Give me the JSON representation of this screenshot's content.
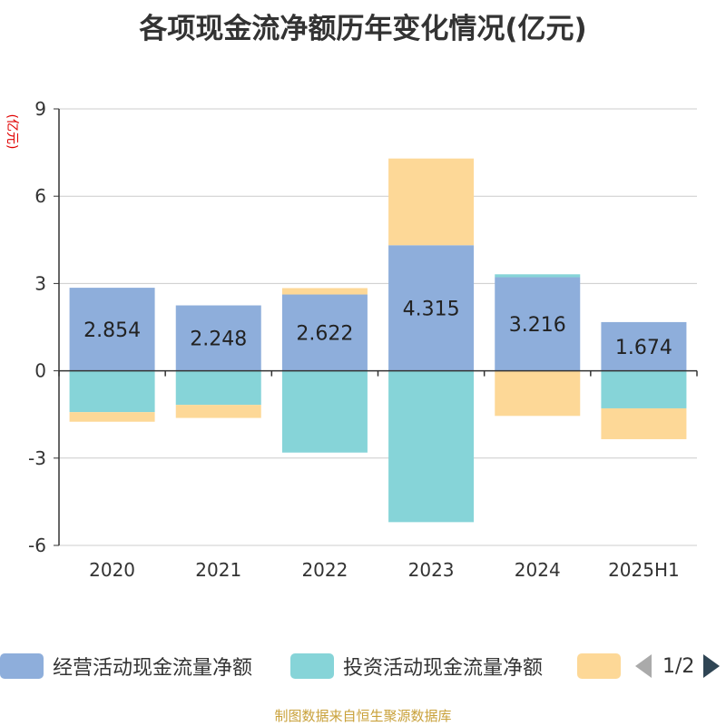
{
  "chart_data": {
    "type": "bar",
    "stacked": true,
    "title": "各项现金流净额历年变化情况(亿元)",
    "ylabel": "(亿元)",
    "categories": [
      "2020",
      "2021",
      "2022",
      "2023",
      "2024",
      "2025H1"
    ],
    "ylim": [
      -6,
      9
    ],
    "yticks": [
      -6,
      -3,
      0,
      3,
      6,
      9
    ],
    "grid": true,
    "series": [
      {
        "name": "经营活动现金流量净额",
        "color": "#8eaedb",
        "values": [
          2.854,
          2.248,
          2.622,
          4.315,
          3.216,
          1.674
        ]
      },
      {
        "name": "投资活动现金流量净额",
        "color": "#86d4d8",
        "values": [
          -1.42,
          -1.17,
          -2.81,
          -5.2,
          0.1,
          -1.29
        ]
      },
      {
        "name": "",
        "color": "#fdd897",
        "values": [
          -0.33,
          -0.45,
          0.22,
          2.98,
          -1.55,
          -1.06
        ]
      }
    ],
    "data_labels": [
      "2.854",
      "2.248",
      "2.622",
      "4.315",
      "3.216",
      "1.674"
    ]
  },
  "legend": {
    "items": [
      {
        "label": "经营活动现金流量净额",
        "color": "#8eaedb"
      },
      {
        "label": "投资活动现金流量净额",
        "color": "#86d4d8"
      },
      {
        "label": "",
        "color": "#fdd897"
      }
    ],
    "page": "1/2",
    "prev_icon": "triangle-left-icon",
    "next_icon": "triangle-right-icon"
  },
  "source_note": "制图数据来自恒生聚源数据库"
}
